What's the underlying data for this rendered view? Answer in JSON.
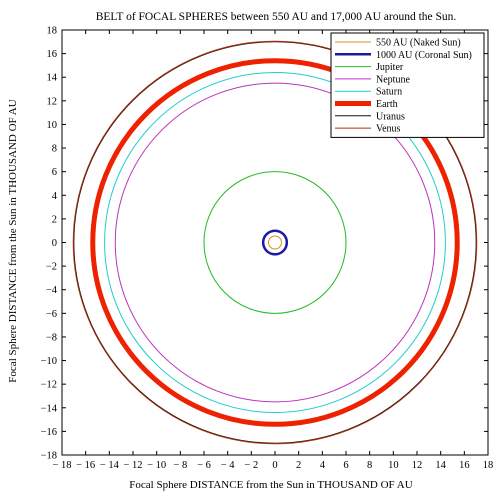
{
  "chart_data": {
    "type": "line",
    "title": "BELT of FOCAL SPHERES between 550 AU and 17,000 AU around the Sun.",
    "xlabel": "Focal Sphere DISTANCE from the Sun in THOUSAND OF AU",
    "ylabel": "Focal Sphere DISTANCE from the Sun in THOUSAND OF AU",
    "xlim": [
      -18,
      18
    ],
    "ylim": [
      -18,
      18
    ],
    "xticks": [
      -18,
      -16,
      -14,
      -12,
      -10,
      -8,
      -6,
      -4,
      -2,
      0,
      2,
      4,
      6,
      8,
      10,
      12,
      14,
      16,
      18
    ],
    "yticks": [
      -18,
      -16,
      -14,
      -12,
      -10,
      -8,
      -6,
      -4,
      -2,
      0,
      2,
      4,
      6,
      8,
      10,
      12,
      14,
      16,
      18
    ],
    "grid": false,
    "legend_position": "top-right",
    "series": [
      {
        "name": "550 AU (Naked Sun)",
        "radius": 0.55,
        "color": "#d98c2a",
        "width": 1
      },
      {
        "name": "1000 AU (Coronal Sun)",
        "radius": 1.0,
        "color": "#1a1aa6",
        "width": 2.5
      },
      {
        "name": "Jupiter",
        "radius": 6.0,
        "color": "#22bb22",
        "width": 1
      },
      {
        "name": "Neptune",
        "radius": 13.5,
        "color": "#bb33bb",
        "width": 1
      },
      {
        "name": "Saturn",
        "radius": 14.4,
        "color": "#22cccc",
        "width": 1
      },
      {
        "name": "Earth",
        "radius": 15.4,
        "color": "#ee2200",
        "width": 5
      },
      {
        "name": "Uranus",
        "radius": 17.0,
        "color": "#111111",
        "width": 1
      },
      {
        "name": "Venus",
        "radius": 17.05,
        "color": "#b03010",
        "width": 1
      }
    ]
  }
}
